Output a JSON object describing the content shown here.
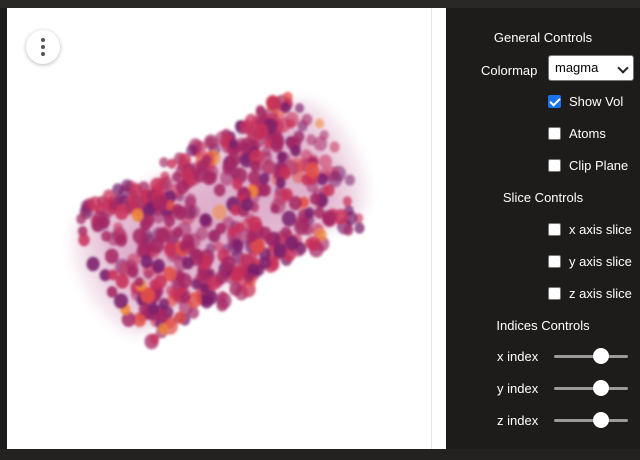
{
  "viewer": {
    "menu_icon": "more-vertical-icon",
    "colormap_colors": [
      "#7a1f6b",
      "#a52864",
      "#c8305a",
      "#e2504a",
      "#f08a3a"
    ]
  },
  "general_controls": {
    "title": "General Controls",
    "colormap_label": "Colormap",
    "colormap_value": "magma",
    "show_vol": {
      "label": "Show Vol",
      "checked": true
    },
    "atoms": {
      "label": "Atoms",
      "checked": false
    },
    "clip_plane": {
      "label": "Clip Plane",
      "checked": false
    }
  },
  "slice_controls": {
    "title": "Slice Controls",
    "x_slice": {
      "label": "x axis slice",
      "checked": false
    },
    "y_slice": {
      "label": "y axis slice",
      "checked": false
    },
    "z_slice": {
      "label": "z axis slice",
      "checked": false
    }
  },
  "indices_controls": {
    "title": "Indices Controls",
    "x_index": {
      "label": "x index",
      "value": 0.5
    },
    "y_index": {
      "label": "y index",
      "value": 0.5
    },
    "z_index": {
      "label": "z index",
      "value": 0.5
    }
  }
}
